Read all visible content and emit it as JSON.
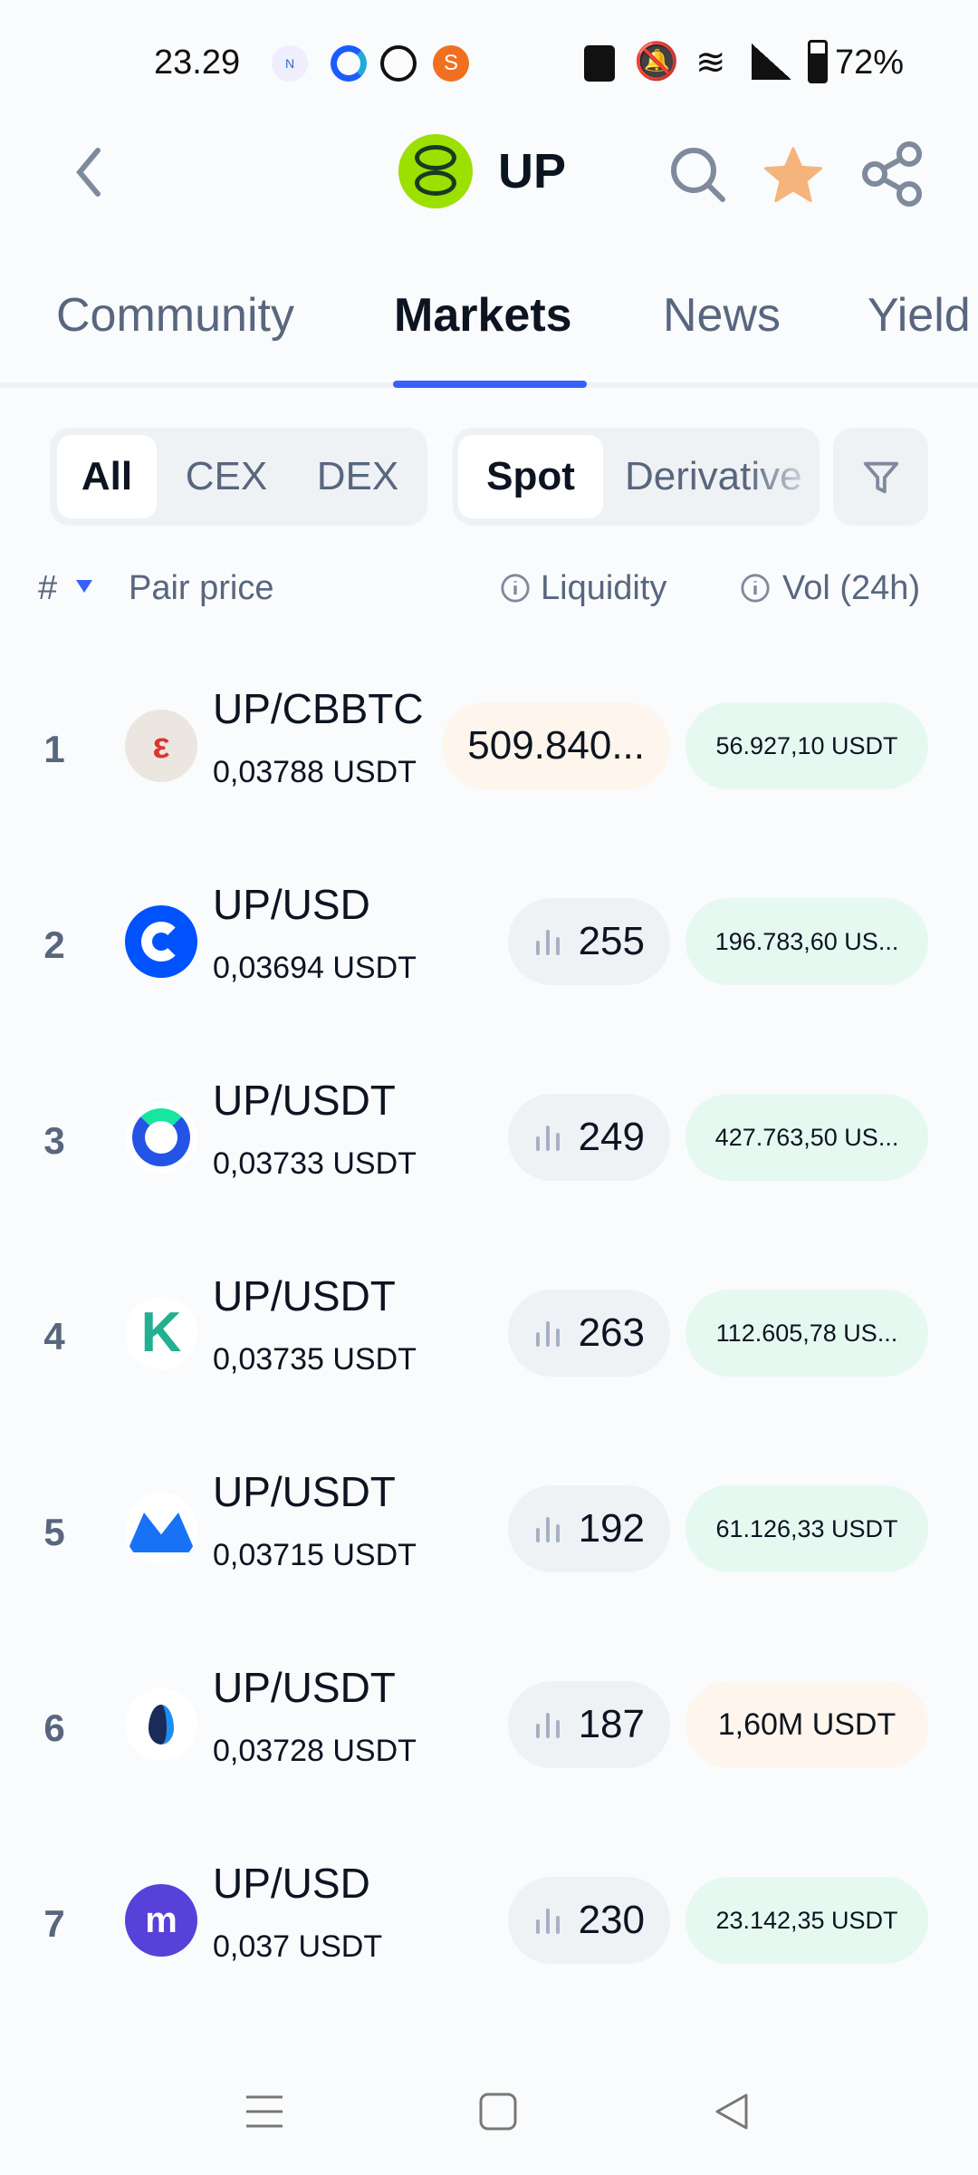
{
  "status": {
    "time": "23.29",
    "battery": "72%",
    "icons": [
      "news-icon",
      "coingecko-icon",
      "coinmarketcap-icon",
      "s-app-icon",
      "nfc-icon",
      "mute-icon",
      "wifi-icon",
      "signal-icon",
      "battery-icon"
    ]
  },
  "header": {
    "title": "UP",
    "logo_color": "#9be000",
    "star_color": "#f5b47c"
  },
  "tabs": [
    {
      "label": "Community"
    },
    {
      "label": "Markets"
    },
    {
      "label": "News"
    },
    {
      "label": "Yield"
    }
  ],
  "accent": "#3861fb",
  "filters": {
    "source": [
      "All",
      "CEX",
      "DEX"
    ],
    "type": [
      "Spot",
      "Derivative"
    ]
  },
  "columns": {
    "rank": "#",
    "pair": "Pair price",
    "liquidity": "Liquidity",
    "volume": "Vol (24h)"
  },
  "rows": [
    {
      "rank": "1",
      "pair": "UP/CBBTC",
      "price": "0,03788 USDT",
      "liquidity": "509.840...",
      "volume": "56.927,10 USDT",
      "liq_warn": true,
      "vol_warn": false,
      "logo": "cbbtc"
    },
    {
      "rank": "2",
      "pair": "UP/USD",
      "price": "0,03694 USDT",
      "liquidity": "255",
      "volume": "196.783,60 US...",
      "logo": "coinbase"
    },
    {
      "rank": "3",
      "pair": "UP/USDT",
      "price": "0,03733 USDT",
      "liquidity": "249",
      "volume": "427.763,50 US...",
      "logo": "gate"
    },
    {
      "rank": "4",
      "pair": "UP/USDT",
      "price": "0,03735 USDT",
      "liquidity": "263",
      "volume": "112.605,78 US...",
      "logo": "kucoin"
    },
    {
      "rank": "5",
      "pair": "UP/USDT",
      "price": "0,03715 USDT",
      "liquidity": "192",
      "volume": "61.126,33 USDT",
      "logo": "mexc"
    },
    {
      "rank": "6",
      "pair": "UP/USDT",
      "price": "0,03728 USDT",
      "liquidity": "187",
      "volume": "1,60M USDT",
      "vol_warn": true,
      "logo": "htx"
    },
    {
      "rank": "7",
      "pair": "UP/USD",
      "price": "0,037 USDT",
      "liquidity": "230",
      "volume": "23.142,35 USDT",
      "logo": "kraken"
    }
  ]
}
